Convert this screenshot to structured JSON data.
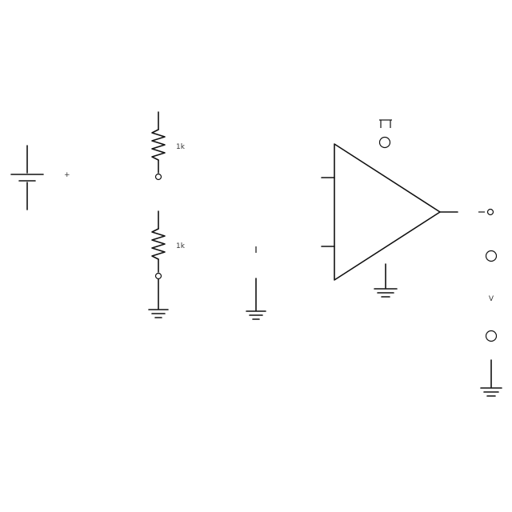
{
  "diagram": {
    "type": "schematic",
    "components": [
      {
        "id": "battery",
        "symbol": "dc-source",
        "label": "+"
      },
      {
        "id": "r1",
        "symbol": "resistor",
        "label": "1k"
      },
      {
        "id": "r2",
        "symbol": "resistor",
        "label": "1k"
      },
      {
        "id": "opamp",
        "symbol": "triangle-amplifier"
      },
      {
        "id": "supply",
        "symbol": "terminal",
        "label": "V"
      },
      {
        "id": "vout",
        "symbol": "terminal"
      }
    ],
    "grounds": 4
  }
}
